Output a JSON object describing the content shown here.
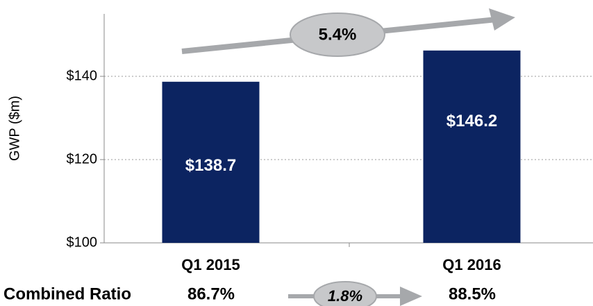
{
  "chart_data": {
    "type": "bar",
    "y_label": "GWP ($m)",
    "categories": [
      "Q1 2015",
      "Q1 2016"
    ],
    "values": [
      138.7,
      146.2
    ],
    "value_labels": [
      "$138.7",
      "$146.2"
    ],
    "color": "#0c2461",
    "ylim": [
      100,
      155
    ],
    "yticks": [
      {
        "value": 100,
        "label": "$100"
      },
      {
        "value": 120,
        "label": "$120"
      },
      {
        "value": 140,
        "label": "$140"
      }
    ],
    "grid": true,
    "growth_label": "5.4%",
    "combined_ratio": {
      "label": "Combined Ratio",
      "values": [
        "86.7%",
        "88.5%"
      ],
      "change": "1.8%"
    }
  }
}
